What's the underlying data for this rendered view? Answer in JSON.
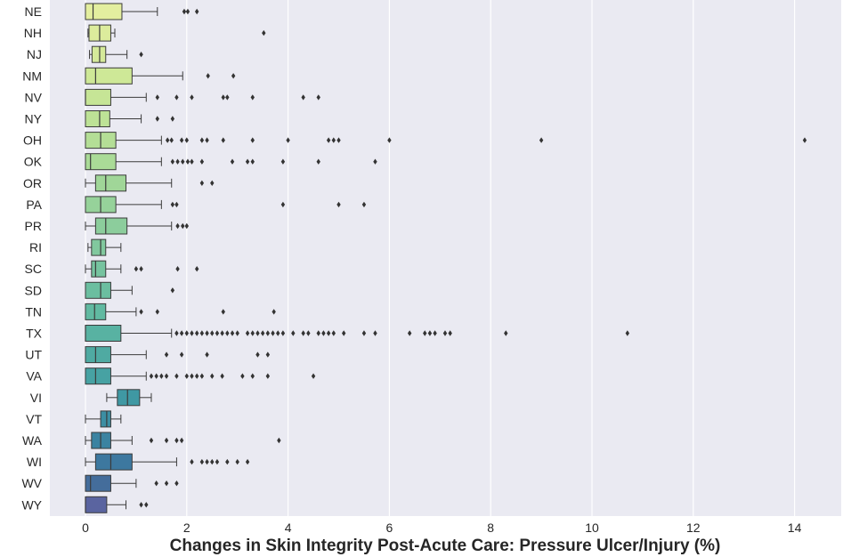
{
  "chart_data": {
    "type": "box",
    "title": "",
    "xlabel": "Changes in Skin Integrity Post-Acute Care: Pressure Ulcer/Injury (%)",
    "ylabel": "",
    "xlim": [
      -0.7,
      14.9
    ],
    "xticks": [
      0,
      2,
      4,
      6,
      8,
      10,
      12,
      14
    ],
    "grid": true,
    "background": "#eaeaf2",
    "palette": "viridis-like gradient from light yellow to purple",
    "categories": [
      "NE",
      "NH",
      "NJ",
      "NM",
      "NV",
      "NY",
      "OH",
      "OK",
      "OR",
      "PA",
      "PR",
      "RI",
      "SC",
      "SD",
      "TN",
      "TX",
      "UT",
      "VA",
      "VI",
      "VT",
      "WA",
      "WI",
      "WV",
      "WY"
    ],
    "boxes": [
      {
        "label": "NE",
        "color": "#e3ee9f",
        "whislo": 0.0,
        "q1": 0.0,
        "med": 0.15,
        "q3": 0.72,
        "whishi": 1.42,
        "fliers": [
          1.95,
          2.02,
          2.2
        ]
      },
      {
        "label": "NH",
        "color": "#dcec9c",
        "whislo": 0.05,
        "q1": 0.07,
        "med": 0.28,
        "q3": 0.5,
        "whishi": 0.58,
        "fliers": [
          3.52
        ]
      },
      {
        "label": "NJ",
        "color": "#d5ea9a",
        "whislo": 0.08,
        "q1": 0.13,
        "med": 0.28,
        "q3": 0.4,
        "whishi": 0.82,
        "fliers": [
          1.1
        ]
      },
      {
        "label": "NM",
        "color": "#cee897",
        "whislo": 0.0,
        "q1": 0.0,
        "med": 0.2,
        "q3": 0.92,
        "whishi": 1.92,
        "fliers": [
          2.42,
          2.92
        ]
      },
      {
        "label": "NV",
        "color": "#c6e596",
        "whislo": 0.0,
        "q1": 0.0,
        "med": 0.0,
        "q3": 0.5,
        "whishi": 1.2,
        "fliers": [
          1.42,
          1.8,
          2.1,
          2.72,
          2.8,
          3.3,
          4.3,
          4.6
        ]
      },
      {
        "label": "NY",
        "color": "#bde296",
        "whislo": 0.0,
        "q1": 0.0,
        "med": 0.28,
        "q3": 0.48,
        "whishi": 1.1,
        "fliers": [
          1.42,
          1.72
        ]
      },
      {
        "label": "OH",
        "color": "#b4de96",
        "whislo": 0.0,
        "q1": 0.0,
        "med": 0.3,
        "q3": 0.6,
        "whishi": 1.5,
        "fliers": [
          1.62,
          1.7,
          1.9,
          2.0,
          2.3,
          2.4,
          2.72,
          3.3,
          4.0,
          4.8,
          4.9,
          5.0,
          6.0,
          9.0,
          14.2
        ]
      },
      {
        "label": "OK",
        "color": "#aadb97",
        "whislo": 0.0,
        "q1": 0.0,
        "med": 0.1,
        "q3": 0.6,
        "whishi": 1.5,
        "fliers": [
          1.72,
          1.82,
          1.92,
          2.02,
          2.1,
          2.3,
          2.9,
          3.2,
          3.3,
          3.9,
          4.6,
          5.72
        ]
      },
      {
        "label": "OR",
        "color": "#a0d698",
        "whislo": 0.0,
        "q1": 0.2,
        "med": 0.4,
        "q3": 0.8,
        "whishi": 1.7,
        "fliers": [
          2.3,
          2.5
        ]
      },
      {
        "label": "PA",
        "color": "#96d29a",
        "whislo": 0.0,
        "q1": 0.0,
        "med": 0.3,
        "q3": 0.6,
        "whishi": 1.5,
        "fliers": [
          1.72,
          1.8,
          3.9,
          5.0,
          5.5
        ]
      },
      {
        "label": "PR",
        "color": "#8ccd9c",
        "whislo": 0.0,
        "q1": 0.2,
        "med": 0.4,
        "q3": 0.82,
        "whishi": 1.7,
        "fliers": [
          1.82,
          1.92,
          2.0
        ]
      },
      {
        "label": "RI",
        "color": "#81c89e",
        "whislo": 0.05,
        "q1": 0.12,
        "med": 0.3,
        "q3": 0.4,
        "whishi": 0.7,
        "fliers": []
      },
      {
        "label": "SC",
        "color": "#76c39f",
        "whislo": 0.0,
        "q1": 0.12,
        "med": 0.2,
        "q3": 0.4,
        "whishi": 0.7,
        "fliers": [
          1.0,
          1.1,
          1.82,
          2.2
        ]
      },
      {
        "label": "SD",
        "color": "#6bbea0",
        "whislo": 0.0,
        "q1": 0.0,
        "med": 0.3,
        "q3": 0.5,
        "whishi": 0.92,
        "fliers": [
          1.72
        ]
      },
      {
        "label": "TN",
        "color": "#61b9a1",
        "whislo": 0.0,
        "q1": 0.0,
        "med": 0.18,
        "q3": 0.4,
        "whishi": 1.0,
        "fliers": [
          1.1,
          1.42,
          2.72,
          3.72
        ]
      },
      {
        "label": "TX",
        "color": "#58b2a2",
        "whislo": 0.0,
        "q1": 0.0,
        "med": 0.0,
        "q3": 0.7,
        "whishi": 1.7,
        "fliers": [
          1.8,
          1.9,
          2.0,
          2.1,
          2.2,
          2.3,
          2.4,
          2.5,
          2.6,
          2.7,
          2.8,
          2.9,
          3.0,
          3.2,
          3.3,
          3.4,
          3.5,
          3.6,
          3.7,
          3.8,
          3.9,
          4.1,
          4.3,
          4.4,
          4.6,
          4.7,
          4.8,
          4.9,
          5.1,
          5.5,
          5.72,
          6.4,
          6.7,
          6.8,
          6.9,
          7.1,
          7.2,
          8.3,
          10.7
        ]
      },
      {
        "label": "UT",
        "color": "#4faaa2",
        "whislo": 0.0,
        "q1": 0.0,
        "med": 0.2,
        "q3": 0.5,
        "whishi": 1.2,
        "fliers": [
          1.6,
          1.9,
          2.4,
          3.4,
          3.6
        ]
      },
      {
        "label": "VA",
        "color": "#47a2a3",
        "whislo": 0.0,
        "q1": 0.0,
        "med": 0.2,
        "q3": 0.5,
        "whishi": 1.2,
        "fliers": [
          1.3,
          1.4,
          1.5,
          1.6,
          1.8,
          2.0,
          2.1,
          2.2,
          2.3,
          2.5,
          2.7,
          3.1,
          3.3,
          3.6,
          4.5
        ]
      },
      {
        "label": "VI",
        "color": "#3f98a3",
        "whislo": 0.42,
        "q1": 0.63,
        "med": 0.83,
        "q3": 1.07,
        "whishi": 1.3,
        "fliers": []
      },
      {
        "label": "VT",
        "color": "#3c8ea3",
        "whislo": 0.0,
        "q1": 0.3,
        "med": 0.42,
        "q3": 0.5,
        "whishi": 0.7,
        "fliers": []
      },
      {
        "label": "WA",
        "color": "#3b83a1",
        "whislo": 0.0,
        "q1": 0.12,
        "med": 0.3,
        "q3": 0.5,
        "whishi": 0.92,
        "fliers": [
          1.3,
          1.6,
          1.8,
          1.9,
          3.82
        ]
      },
      {
        "label": "WI",
        "color": "#3d789f",
        "whislo": 0.0,
        "q1": 0.2,
        "med": 0.5,
        "q3": 0.92,
        "whishi": 1.8,
        "fliers": [
          2.1,
          2.3,
          2.4,
          2.5,
          2.6,
          2.8,
          3.0,
          3.2
        ]
      },
      {
        "label": "WV",
        "color": "#446d9b",
        "whislo": 0.0,
        "q1": 0.0,
        "med": 0.1,
        "q3": 0.5,
        "whishi": 1.0,
        "fliers": [
          1.4,
          1.6,
          1.8
        ]
      },
      {
        "label": "WY",
        "color": "#5a64a0",
        "whislo": 0.0,
        "q1": 0.0,
        "med": 0.0,
        "q3": 0.42,
        "whishi": 0.8,
        "fliers": [
          1.1,
          1.2
        ]
      }
    ]
  }
}
